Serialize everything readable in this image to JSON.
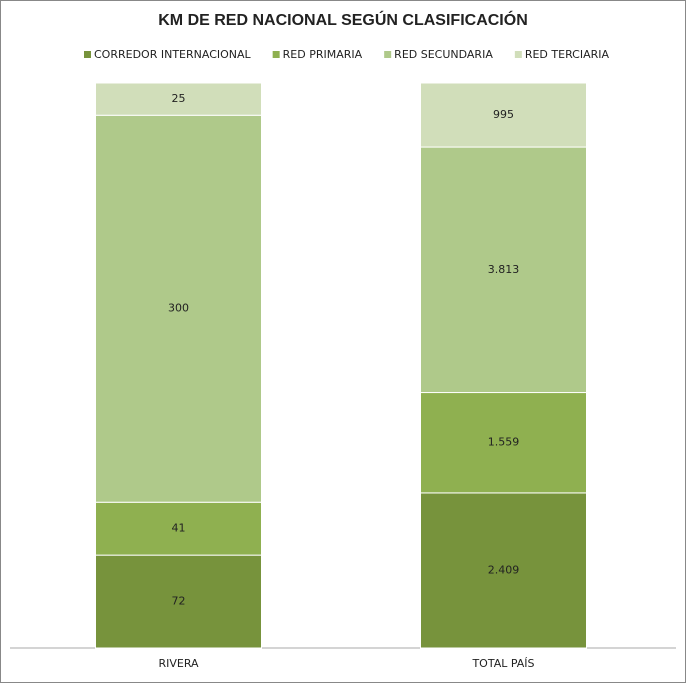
{
  "chart_data": {
    "type": "bar",
    "stacking": "percent",
    "title": "KM DE RED NACIONAL SEGÚN CLASIFICACIÓN",
    "categories": [
      "RIVERA",
      "TOTAL PAÍS"
    ],
    "series": [
      {
        "name": "CORREDOR INTERNACIONAL",
        "color": "#77933c",
        "values": [
          72,
          2409
        ],
        "value_labels": [
          "72",
          "2.409"
        ]
      },
      {
        "name": "RED PRIMARIA",
        "color": "#8fb050",
        "values": [
          41,
          1559
        ],
        "value_labels": [
          "41",
          "1.559"
        ]
      },
      {
        "name": "RED SECUNDARIA",
        "color": "#afc98a",
        "values": [
          300,
          3813
        ],
        "value_labels": [
          "300",
          "3.813"
        ]
      },
      {
        "name": "RED TERCIARIA",
        "color": "#d1deba",
        "values": [
          25,
          995
        ],
        "value_labels": [
          "25",
          "995"
        ]
      }
    ],
    "legend": "top"
  }
}
